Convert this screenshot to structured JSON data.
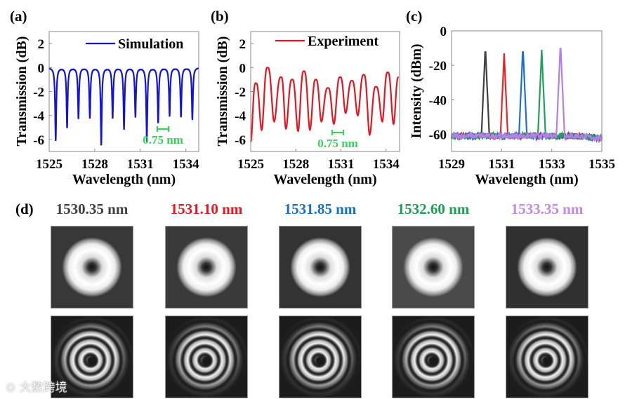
{
  "chart_data": [
    {
      "panel_label": "(a)",
      "type": "line",
      "xlabel": "Wavelength (nm)",
      "ylabel": "Transmission (dB)",
      "xlim": [
        1525,
        1534.85
      ],
      "ylim": [
        -7,
        3
      ],
      "xticks": [
        "1525",
        "1528",
        "1531",
        "1534"
      ],
      "yticks": [
        "2",
        "0",
        "-2",
        "-4",
        "-6"
      ],
      "legend": "Simulation",
      "series": [
        {
          "name": "Simulation",
          "color": "#1414d6",
          "minima": [
            [
              1525.43,
              -6.1
            ],
            [
              1526.18,
              -5.0
            ],
            [
              1526.93,
              -4.2
            ],
            [
              1527.68,
              -4.2
            ],
            [
              1528.43,
              -6.4
            ],
            [
              1529.18,
              -4.2
            ],
            [
              1529.93,
              -5.1
            ],
            [
              1530.68,
              -4.1
            ],
            [
              1531.43,
              -6.1
            ],
            [
              1532.18,
              -4.6
            ],
            [
              1532.93,
              -4.0
            ],
            [
              1533.68,
              -4.1
            ],
            [
              1534.43,
              -4.3
            ]
          ]
        }
      ],
      "annotation": {
        "text": "0.75 nm",
        "span_nm": 0.75,
        "color": "#3ccf5a"
      }
    },
    {
      "panel_label": "(b)",
      "type": "line",
      "xlabel": "Wavelength (nm)",
      "ylabel": "Transmission (dB)",
      "xlim": [
        1525,
        1534.9
      ],
      "ylim": [
        -7,
        3
      ],
      "xticks": [
        "1525",
        "1528",
        "1531",
        "1534"
      ],
      "yticks": [
        "2",
        "0",
        "-2",
        "-4",
        "-6"
      ],
      "legend": "Experiment",
      "series": [
        {
          "name": "Experiment",
          "color": "#e8141e",
          "extrema": [
            [
              1525.0,
              -6.2
            ],
            [
              1525.34,
              -1.3
            ],
            [
              1525.73,
              -5.2
            ],
            [
              1526.12,
              0
            ],
            [
              1526.56,
              -4.5
            ],
            [
              1527.02,
              -0.8
            ],
            [
              1527.34,
              -5.1
            ],
            [
              1527.76,
              -1.0
            ],
            [
              1528.15,
              -5.3
            ],
            [
              1528.54,
              -0.3
            ],
            [
              1528.94,
              -5.2
            ],
            [
              1529.33,
              -1.0
            ],
            [
              1529.7,
              -4.5
            ],
            [
              1530.14,
              -1.7
            ],
            [
              1530.53,
              -4.7
            ],
            [
              1530.95,
              -0.8
            ],
            [
              1531.31,
              -3.8
            ],
            [
              1531.73,
              -1.1
            ],
            [
              1532.12,
              -4.0
            ],
            [
              1532.52,
              -0.6
            ],
            [
              1532.91,
              -5.6
            ],
            [
              1533.33,
              -1.6
            ],
            [
              1533.75,
              -4.5
            ],
            [
              1534.11,
              -0.4
            ],
            [
              1534.5,
              -4.7
            ],
            [
              1534.84,
              -0.8
            ]
          ]
        }
      ],
      "annotation": {
        "text": "0.75 nm",
        "span_nm": 0.75,
        "color": "#3ccf5a"
      }
    },
    {
      "panel_label": "(c)",
      "type": "line",
      "xlabel": "Wavelength (nm)",
      "ylabel": "Intensity (dBm)",
      "xlim": [
        1529,
        1535
      ],
      "ylim": [
        -70,
        0
      ],
      "xticks": [
        "1529",
        "1531",
        "1533",
        "1535"
      ],
      "yticks": [
        "0",
        "-20",
        "-40",
        "-60"
      ],
      "baseline_dbm": -61,
      "series": [
        {
          "name": "1530.35 nm",
          "peak_x": 1530.35,
          "peak_y": -9,
          "color": "#404040"
        },
        {
          "name": "1531.10 nm",
          "peak_x": 1531.1,
          "peak_y": -13,
          "color": "#e8262a"
        },
        {
          "name": "1531.85 nm",
          "peak_x": 1531.85,
          "peak_y": -9,
          "color": "#1f6fd1"
        },
        {
          "name": "1532.60 nm",
          "peak_x": 1532.6,
          "peak_y": -11,
          "color": "#22a05a"
        },
        {
          "name": "1533.35 nm",
          "peak_x": 1533.35,
          "peak_y": -7,
          "color": "#b57ee8"
        }
      ]
    }
  ],
  "panel_d": {
    "label": "(d)",
    "columns": [
      {
        "caption": "1530.35 nm",
        "color": "#404040",
        "bg": "#383838"
      },
      {
        "caption": "1531.10 nm",
        "color": "#e8141e",
        "bg": "#3a3a3a"
      },
      {
        "caption": "1531.85 nm",
        "color": "#1670c8",
        "bg": "#333333"
      },
      {
        "caption": "1532.60 nm",
        "color": "#1aa050",
        "bg": "#4a4a4a"
      },
      {
        "caption": "1533.35 nm",
        "color": "#c088e8",
        "bg": "#303030"
      }
    ]
  },
  "watermark": "大数跨境"
}
